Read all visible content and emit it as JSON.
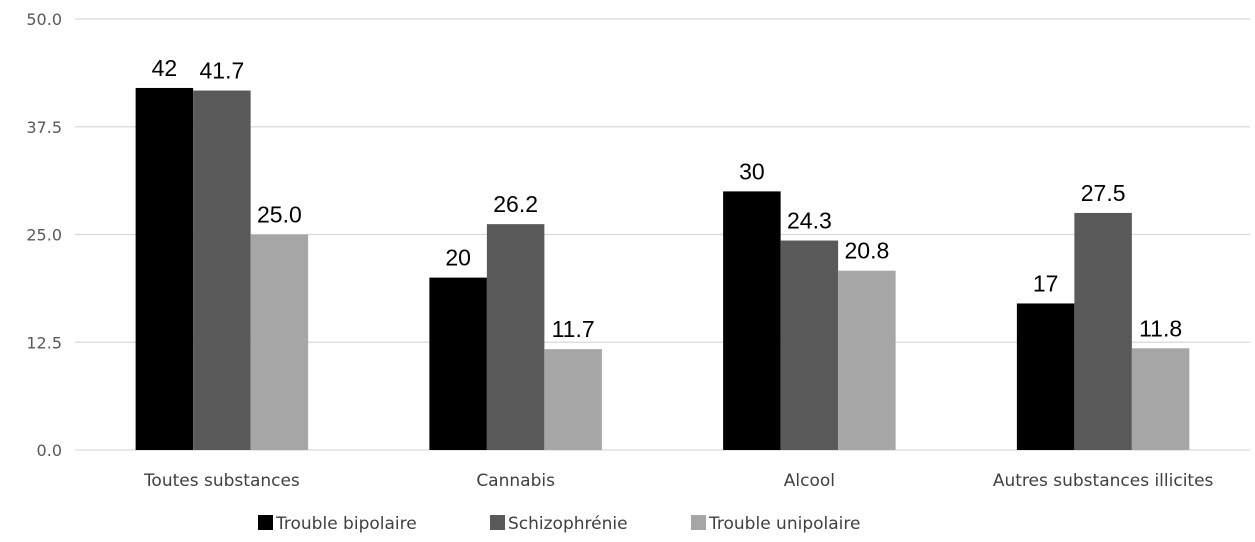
{
  "chart_data": {
    "type": "bar",
    "categories": [
      "Toutes substances",
      "Cannabis",
      "Alcool",
      "Autres substances illicites"
    ],
    "series": [
      {
        "name": "Trouble bipolaire",
        "values": [
          42,
          20,
          30,
          17
        ],
        "labels": [
          "42",
          "20",
          "30",
          "17"
        ],
        "color": "#000000"
      },
      {
        "name": "Schizophrénie",
        "values": [
          41.7,
          26.2,
          24.3,
          27.5
        ],
        "labels": [
          "41.7",
          "26.2",
          "24.3",
          "27.5"
        ],
        "color": "#595959"
      },
      {
        "name": "Trouble unipolaire",
        "values": [
          25.0,
          11.7,
          20.8,
          11.8
        ],
        "labels": [
          "25.0",
          "11.7",
          "20.8",
          "11.8"
        ],
        "color": "#a6a6a6"
      }
    ],
    "yticks": [
      "0.0",
      "12.5",
      "25.0",
      "37.5",
      "50.0"
    ],
    "ylim": [
      0,
      50
    ],
    "grid": true,
    "legend": "bottom",
    "title": "",
    "xlabel": "",
    "ylabel": ""
  }
}
